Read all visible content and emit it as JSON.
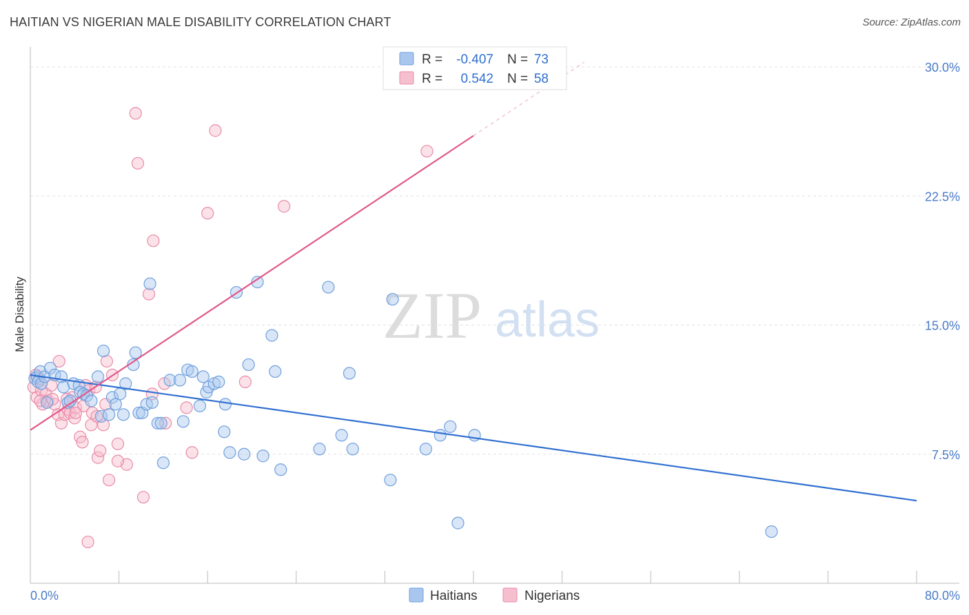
{
  "header": {
    "title": "HAITIAN VS NIGERIAN MALE DISABILITY CORRELATION CHART",
    "source": "Source: ZipAtlas.com"
  },
  "watermark": {
    "zip": "ZIP",
    "atlas": "atlas"
  },
  "colors": {
    "haitians_fill": "#a9c7ee",
    "haitians_stroke": "#6f9fdc",
    "haitians_line": "#2f6fd0",
    "nigerians_fill": "#f6bfcf",
    "nigerians_stroke": "#e98aa8",
    "nigerians_line": "#e0578a",
    "tick_text": "#4a7bc8",
    "grid": "#e0e0e0"
  },
  "stats_legend": [
    {
      "series": "Haitians",
      "r_label": "R =",
      "r_value": "-0.407",
      "n_label": "N =",
      "n_value": "73"
    },
    {
      "series": "Nigerians",
      "r_label": "R =",
      "r_value": "0.542",
      "n_label": "N =",
      "n_value": "58"
    }
  ],
  "chart_data": {
    "type": "scatter",
    "title": "HAITIAN VS NIGERIAN MALE DISABILITY CORRELATION CHART",
    "xlabel": "",
    "ylabel": "Male Disability",
    "xlim": [
      0,
      80
    ],
    "ylim": [
      0,
      30
    ],
    "x_unit": "%",
    "y_unit": "%",
    "x_tick_labels": [
      "0.0%",
      "80.0%"
    ],
    "y_tick_labels": [
      "7.5%",
      "15.0%",
      "22.5%",
      "30.0%"
    ],
    "y_ticks": [
      7.5,
      15.0,
      22.5,
      30.0
    ],
    "grid": true,
    "legend_position": "bottom",
    "series": [
      {
        "name": "Haitians",
        "r": -0.407,
        "n": 73,
        "trend": {
          "x": [
            0,
            80
          ],
          "y": [
            12.1,
            4.8
          ]
        },
        "points": [
          [
            0.4,
            11.9
          ],
          [
            0.6,
            12.0
          ],
          [
            0.7,
            11.7
          ],
          [
            0.9,
            12.3
          ],
          [
            1.0,
            11.6
          ],
          [
            1.3,
            12.0
          ],
          [
            1.5,
            10.5
          ],
          [
            1.8,
            12.5
          ],
          [
            2.2,
            12.1
          ],
          [
            2.8,
            12.0
          ],
          [
            3.0,
            11.4
          ],
          [
            3.4,
            10.5
          ],
          [
            3.6,
            10.6
          ],
          [
            3.9,
            11.6
          ],
          [
            4.4,
            11.5
          ],
          [
            4.5,
            11.1
          ],
          [
            4.8,
            11.0
          ],
          [
            5.1,
            10.9
          ],
          [
            5.5,
            10.6
          ],
          [
            6.1,
            12.0
          ],
          [
            6.4,
            9.7
          ],
          [
            6.6,
            13.5
          ],
          [
            7.1,
            9.8
          ],
          [
            7.4,
            10.8
          ],
          [
            7.7,
            10.4
          ],
          [
            8.1,
            11.0
          ],
          [
            8.4,
            9.8
          ],
          [
            8.6,
            11.6
          ],
          [
            9.3,
            12.7
          ],
          [
            9.5,
            13.4
          ],
          [
            9.8,
            9.9
          ],
          [
            10.1,
            9.9
          ],
          [
            10.5,
            10.4
          ],
          [
            10.8,
            17.4
          ],
          [
            11.0,
            10.5
          ],
          [
            11.5,
            9.3
          ],
          [
            11.8,
            9.3
          ],
          [
            12.0,
            7.0
          ],
          [
            12.6,
            11.8
          ],
          [
            13.5,
            11.8
          ],
          [
            13.8,
            9.4
          ],
          [
            14.2,
            12.4
          ],
          [
            14.6,
            12.3
          ],
          [
            15.3,
            10.3
          ],
          [
            15.6,
            12.0
          ],
          [
            15.9,
            11.1
          ],
          [
            16.1,
            11.4
          ],
          [
            16.6,
            11.6
          ],
          [
            17.0,
            11.7
          ],
          [
            17.5,
            8.8
          ],
          [
            17.6,
            10.4
          ],
          [
            18.0,
            7.6
          ],
          [
            18.6,
            16.9
          ],
          [
            19.3,
            7.5
          ],
          [
            19.7,
            12.7
          ],
          [
            20.5,
            17.5
          ],
          [
            21.0,
            7.4
          ],
          [
            21.8,
            14.4
          ],
          [
            22.1,
            12.3
          ],
          [
            22.6,
            6.6
          ],
          [
            26.1,
            7.8
          ],
          [
            26.9,
            17.2
          ],
          [
            28.1,
            8.6
          ],
          [
            28.8,
            12.2
          ],
          [
            29.1,
            7.8
          ],
          [
            32.5,
            6.0
          ],
          [
            32.7,
            16.5
          ],
          [
            35.7,
            7.8
          ],
          [
            37.0,
            8.6
          ],
          [
            37.9,
            9.1
          ],
          [
            38.6,
            3.5
          ],
          [
            40.1,
            8.6
          ],
          [
            66.9,
            3.0
          ]
        ]
      },
      {
        "name": "Nigerians",
        "r": 0.542,
        "n": 58,
        "trend": {
          "x": [
            0,
            40
          ],
          "y": [
            8.9,
            26.0
          ]
        },
        "points": [
          [
            0.3,
            11.4
          ],
          [
            0.5,
            12.1
          ],
          [
            0.6,
            10.8
          ],
          [
            0.8,
            11.9
          ],
          [
            1.0,
            11.2
          ],
          [
            1.1,
            10.4
          ],
          [
            1.4,
            11.0
          ],
          [
            1.6,
            10.6
          ],
          [
            1.9,
            11.5
          ],
          [
            2.2,
            10.4
          ],
          [
            2.5,
            9.8
          ],
          [
            2.6,
            12.9
          ],
          [
            2.8,
            9.3
          ],
          [
            3.1,
            9.8
          ],
          [
            3.4,
            10.1
          ],
          [
            3.6,
            9.9
          ],
          [
            3.8,
            10.8
          ],
          [
            4.0,
            9.6
          ],
          [
            4.1,
            10.2
          ],
          [
            4.5,
            8.5
          ],
          [
            4.7,
            8.2
          ],
          [
            4.8,
            10.3
          ],
          [
            5.0,
            11.5
          ],
          [
            5.3,
            11.2
          ],
          [
            5.5,
            9.2
          ],
          [
            5.6,
            9.9
          ],
          [
            5.9,
            11.4
          ],
          [
            6.1,
            7.3
          ],
          [
            6.3,
            7.7
          ],
          [
            6.6,
            9.2
          ],
          [
            6.8,
            10.4
          ],
          [
            6.9,
            12.9
          ],
          [
            7.1,
            6.0
          ],
          [
            7.4,
            12.1
          ],
          [
            7.9,
            8.1
          ],
          [
            8.7,
            6.9
          ],
          [
            9.5,
            27.3
          ],
          [
            9.7,
            24.4
          ],
          [
            10.2,
            5.0
          ],
          [
            10.7,
            16.8
          ],
          [
            11.0,
            11.0
          ],
          [
            11.1,
            19.9
          ],
          [
            12.1,
            11.6
          ],
          [
            12.2,
            9.3
          ],
          [
            14.1,
            10.2
          ],
          [
            14.6,
            7.6
          ],
          [
            16.0,
            21.5
          ],
          [
            16.7,
            26.3
          ],
          [
            19.4,
            11.7
          ],
          [
            22.9,
            21.9
          ],
          [
            35.8,
            25.1
          ],
          [
            5.2,
            2.4
          ],
          [
            3.3,
            10.7
          ],
          [
            2.0,
            10.7
          ],
          [
            0.9,
            10.6
          ],
          [
            7.9,
            7.1
          ],
          [
            4.1,
            9.9
          ],
          [
            6.0,
            9.7
          ]
        ]
      }
    ]
  }
}
